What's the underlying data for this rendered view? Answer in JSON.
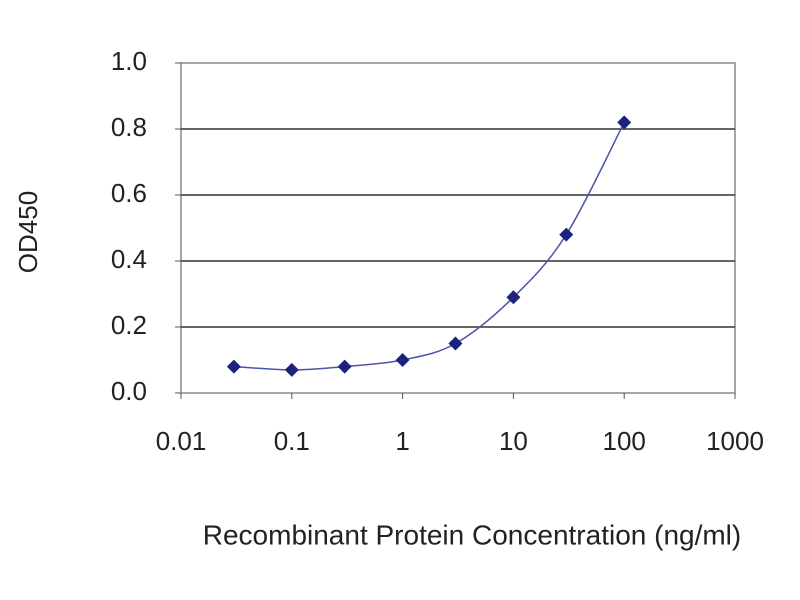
{
  "chart_data": {
    "type": "line",
    "x": [
      0.03,
      0.1,
      0.3,
      1,
      3,
      10,
      30,
      100
    ],
    "values": [
      0.08,
      0.07,
      0.08,
      0.1,
      0.15,
      0.29,
      0.48,
      0.82
    ],
    "color": "#1c237e",
    "line_color": "#4a55a8",
    "xlabel": "Recombinant Protein Concentration (ng/ml)",
    "ylabel": "OD450",
    "xscale": "log",
    "xlim": [
      0.01,
      1000
    ],
    "xticks": [
      0.01,
      0.1,
      1,
      10,
      100,
      1000
    ],
    "ylim": [
      0,
      1
    ],
    "yticks": [
      {
        "value": 0,
        "label": "0.0"
      },
      {
        "value": 0.2,
        "label": "0.2"
      },
      {
        "value": 0.4,
        "label": "0.4"
      },
      {
        "value": 0.6,
        "label": "0.6"
      },
      {
        "value": 0.8,
        "label": "0.8"
      },
      {
        "value": 1,
        "label": "1.0"
      }
    ],
    "grid": true
  }
}
